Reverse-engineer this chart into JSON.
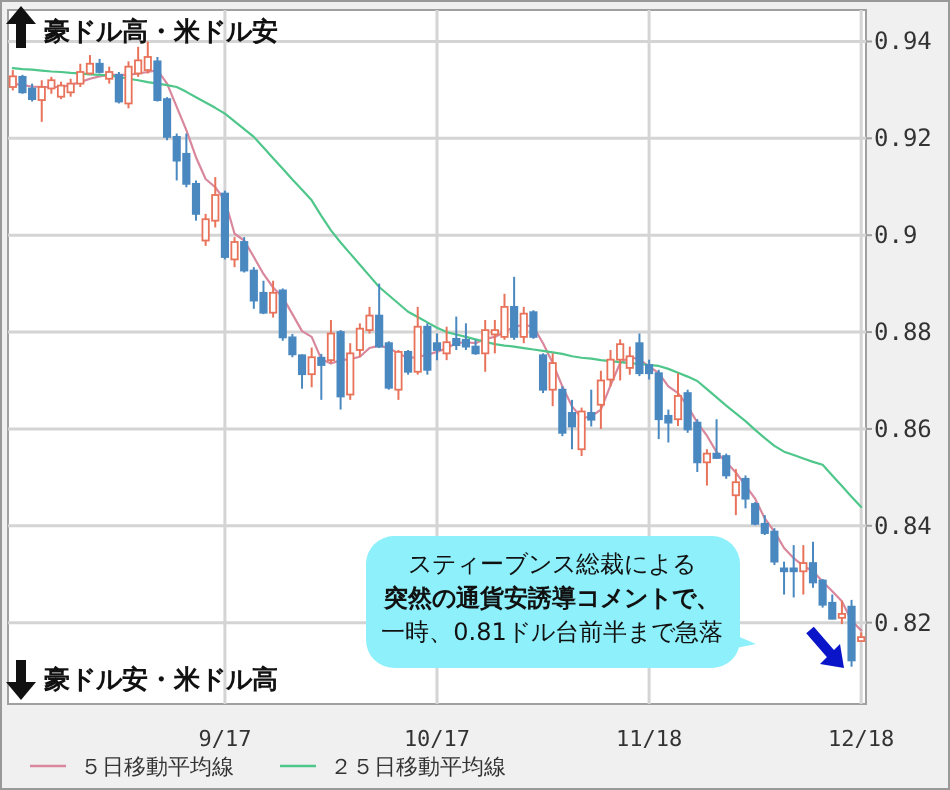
{
  "chart_data": {
    "type": "candlestick",
    "categories": [
      null,
      null,
      null,
      null,
      null,
      null,
      null,
      null,
      null,
      null,
      null,
      null,
      null,
      null,
      null,
      null,
      null,
      null,
      null,
      null,
      null,
      null,
      "9/17",
      null,
      null,
      null,
      null,
      null,
      null,
      null,
      null,
      null,
      null,
      null,
      null,
      null,
      null,
      null,
      null,
      null,
      null,
      null,
      null,
      null,
      "10/17",
      null,
      null,
      null,
      null,
      null,
      null,
      null,
      null,
      null,
      null,
      null,
      null,
      null,
      null,
      null,
      null,
      null,
      null,
      null,
      null,
      null,
      "11/18",
      null,
      null,
      null,
      null,
      null,
      null,
      null,
      null,
      null,
      null,
      null,
      null,
      null,
      null,
      null,
      null,
      null,
      null,
      null,
      null,
      null,
      "12/18"
    ],
    "ohlc": [
      [
        0.9306,
        0.9341,
        0.9299,
        0.9328
      ],
      [
        0.9327,
        0.9331,
        0.9292,
        0.9295
      ],
      [
        0.9303,
        0.9313,
        0.9276,
        0.9281
      ],
      [
        0.9279,
        0.932,
        0.9234,
        0.9306
      ],
      [
        0.9303,
        0.9327,
        0.9292,
        0.932
      ],
      [
        0.9286,
        0.9317,
        0.9281,
        0.9309
      ],
      [
        0.9295,
        0.9323,
        0.9286,
        0.9313
      ],
      [
        0.9313,
        0.9354,
        0.9306,
        0.9337
      ],
      [
        0.9334,
        0.9372,
        0.9331,
        0.9354
      ],
      [
        0.9354,
        0.9364,
        0.9334,
        0.9337
      ],
      [
        0.9323,
        0.9348,
        0.9313,
        0.9337
      ],
      [
        0.9331,
        0.9337,
        0.9272,
        0.9276
      ],
      [
        0.9272,
        0.9359,
        0.9262,
        0.9348
      ],
      [
        0.9334,
        0.9389,
        0.9327,
        0.9361
      ],
      [
        0.9341,
        0.94,
        0.9334,
        0.9368
      ],
      [
        0.9359,
        0.9368,
        0.9276,
        0.9279
      ],
      [
        0.9281,
        0.9285,
        0.9196,
        0.9203
      ],
      [
        0.9203,
        0.921,
        0.9113,
        0.9154
      ],
      [
        0.9168,
        0.921,
        0.9099,
        0.9106
      ],
      [
        0.9106,
        0.9113,
        0.903,
        0.9044
      ],
      [
        0.8989,
        0.9044,
        0.8978,
        0.9033
      ],
      [
        0.903,
        0.912,
        0.9016,
        0.9083
      ],
      [
        0.9086,
        0.9092,
        0.895,
        0.8955
      ],
      [
        0.895,
        0.8996,
        0.8934,
        0.8986
      ],
      [
        0.8986,
        0.8996,
        0.8923,
        0.8927
      ],
      [
        0.8927,
        0.8934,
        0.8848,
        0.8865
      ],
      [
        0.8881,
        0.8906,
        0.8837,
        0.884
      ],
      [
        0.884,
        0.8906,
        0.883,
        0.8881
      ],
      [
        0.8886,
        0.889,
        0.8782,
        0.8789
      ],
      [
        0.8789,
        0.8796,
        0.8748,
        0.8754
      ],
      [
        0.8752,
        0.8754,
        0.8683,
        0.8713
      ],
      [
        0.8713,
        0.8768,
        0.8686,
        0.8748
      ],
      [
        0.8747,
        0.8755,
        0.866,
        0.8732
      ],
      [
        0.8742,
        0.8825,
        0.8736,
        0.8797
      ],
      [
        0.88,
        0.8804,
        0.864,
        0.8667
      ],
      [
        0.8671,
        0.8777,
        0.866,
        0.8756
      ],
      [
        0.8763,
        0.8818,
        0.8749,
        0.8807
      ],
      [
        0.8804,
        0.8852,
        0.8797,
        0.8834
      ],
      [
        0.8834,
        0.89,
        0.8767,
        0.877
      ],
      [
        0.8777,
        0.8781,
        0.8681,
        0.8685
      ],
      [
        0.8681,
        0.8763,
        0.866,
        0.8759
      ],
      [
        0.8759,
        0.8763,
        0.8712,
        0.8718
      ],
      [
        0.8718,
        0.8852,
        0.8712,
        0.8811
      ],
      [
        0.8811,
        0.8818,
        0.8712,
        0.8722
      ],
      [
        0.8777,
        0.8797,
        0.8742,
        0.8763
      ],
      [
        0.8756,
        0.8811,
        0.8742,
        0.8779
      ],
      [
        0.8786,
        0.8832,
        0.8763,
        0.8773
      ],
      [
        0.8784,
        0.8818,
        0.8763,
        0.877
      ],
      [
        0.877,
        0.8784,
        0.8753,
        0.8756
      ],
      [
        0.8756,
        0.8825,
        0.8718,
        0.8804
      ],
      [
        0.8795,
        0.8825,
        0.8756,
        0.8804
      ],
      [
        0.879,
        0.8879,
        0.8784,
        0.8852
      ],
      [
        0.8852,
        0.8914,
        0.8784,
        0.879
      ],
      [
        0.879,
        0.8852,
        0.8777,
        0.8838
      ],
      [
        0.8841,
        0.8845,
        0.8786,
        0.879
      ],
      [
        0.8752,
        0.8756,
        0.8674,
        0.8681
      ],
      [
        0.8681,
        0.8756,
        0.8647,
        0.8736
      ],
      [
        0.8681,
        0.8688,
        0.8585,
        0.8592
      ],
      [
        0.8633,
        0.866,
        0.8558,
        0.8605
      ],
      [
        0.8558,
        0.8644,
        0.8544,
        0.8636
      ],
      [
        0.8633,
        0.8681,
        0.8605,
        0.8619
      ],
      [
        0.865,
        0.872,
        0.86,
        0.87
      ],
      [
        0.8702,
        0.8763,
        0.8688,
        0.8743
      ],
      [
        0.8743,
        0.8785,
        0.87,
        0.8775
      ],
      [
        0.8726,
        0.877,
        0.8712,
        0.875
      ],
      [
        0.8777,
        0.8797,
        0.8709,
        0.8715
      ],
      [
        0.8732,
        0.8743,
        0.8702,
        0.8715
      ],
      [
        0.8715,
        0.8722,
        0.8579,
        0.862
      ],
      [
        0.8627,
        0.864,
        0.8572,
        0.8613
      ],
      [
        0.862,
        0.8715,
        0.8606,
        0.8668
      ],
      [
        0.8674,
        0.8681,
        0.8592,
        0.8599
      ],
      [
        0.8613,
        0.862,
        0.8511,
        0.8531
      ],
      [
        0.8531,
        0.8558,
        0.8483,
        0.8549
      ],
      [
        0.8549,
        0.862,
        0.8538,
        0.854
      ],
      [
        0.8544,
        0.8549,
        0.8497,
        0.8504
      ],
      [
        0.8463,
        0.8517,
        0.8422,
        0.849
      ],
      [
        0.8497,
        0.8504,
        0.8436,
        0.8456
      ],
      [
        0.8445,
        0.8449,
        0.8401,
        0.8404
      ],
      [
        0.8404,
        0.8422,
        0.8381,
        0.8385
      ],
      [
        0.8388,
        0.8395,
        0.8319,
        0.8326
      ],
      [
        0.8312,
        0.8326,
        0.8258,
        0.8306
      ],
      [
        0.8312,
        0.836,
        0.8252,
        0.8306
      ],
      [
        0.8306,
        0.836,
        0.8258,
        0.8323
      ],
      [
        0.8323,
        0.8367,
        0.8272,
        0.8283
      ],
      [
        0.8287,
        0.829,
        0.8231,
        0.8237
      ],
      [
        0.8241,
        0.8258,
        0.8207,
        0.8208
      ],
      [
        0.821,
        0.8245,
        0.8197,
        0.8218
      ],
      [
        0.8233,
        0.8247,
        0.8109,
        0.8122
      ],
      [
        0.8162,
        0.818,
        0.816,
        0.817
      ]
    ],
    "colors": [
      "#e8735a",
      "#4a88c0",
      "#4a88c0",
      "#e8735a",
      "#e8735a",
      "#e8735a",
      "#e8735a",
      "#e8735a",
      "#e8735a",
      "#4a88c0",
      "#e8735a",
      "#4a88c0",
      "#e8735a",
      "#e8735a",
      "#e8735a",
      "#4a88c0",
      "#4a88c0",
      "#4a88c0",
      "#4a88c0",
      "#4a88c0",
      "#e8735a",
      "#e8735a",
      "#4a88c0",
      "#e8735a",
      "#4a88c0",
      "#4a88c0",
      "#4a88c0",
      "#e8735a",
      "#4a88c0",
      "#4a88c0",
      "#4a88c0",
      "#e8735a",
      "#4a88c0",
      "#e8735a",
      "#4a88c0",
      "#e8735a",
      "#e8735a",
      "#e8735a",
      "#4a88c0",
      "#4a88c0",
      "#e8735a",
      "#4a88c0",
      "#e8735a",
      "#4a88c0",
      "#4a88c0",
      "#e8735a",
      "#4a88c0",
      "#4a88c0",
      "#4a88c0",
      "#e8735a",
      "#e8735a",
      "#e8735a",
      "#4a88c0",
      "#e8735a",
      "#4a88c0",
      "#4a88c0",
      "#e8735a",
      "#4a88c0",
      "#4a88c0",
      "#e8735a",
      "#4a88c0",
      "#e8735a",
      "#e8735a",
      "#e8735a",
      "#e8735a",
      "#4a88c0",
      "#4a88c0",
      "#4a88c0",
      "#4a88c0",
      "#e8735a",
      "#4a88c0",
      "#4a88c0",
      "#e8735a",
      "#4a88c0",
      "#4a88c0",
      "#e8735a",
      "#4a88c0",
      "#4a88c0",
      "#4a88c0",
      "#4a88c0",
      "#4a88c0",
      "#4a88c0",
      "#e8735a",
      "#4a88c0",
      "#4a88c0",
      "#4a88c0",
      "#e8735a",
      "#4a88c0",
      "#e8735a"
    ],
    "series": [
      {
        "name": "５日移動平均線",
        "type": "line",
        "color": "#d9879c",
        "values": [
          0.9313,
          0.931,
          0.9307,
          0.9306,
          0.9306,
          0.9306,
          0.931,
          0.9316,
          0.9323,
          0.9328,
          0.9331,
          0.9331,
          0.9331,
          0.9334,
          0.9337,
          0.9341,
          0.9313,
          0.9265,
          0.9217,
          0.9161,
          0.9116,
          0.9099,
          0.9072,
          0.9003,
          0.8989,
          0.8955,
          0.892,
          0.8892,
          0.8872,
          0.8837,
          0.8802,
          0.879,
          0.8744,
          0.8735,
          0.8742,
          0.8744,
          0.8749,
          0.8767,
          0.8772,
          0.8767,
          0.8756,
          0.8746,
          0.8749,
          0.8753,
          0.8759,
          0.8767,
          0.8777,
          0.8779,
          0.8777,
          0.8786,
          0.879,
          0.88,
          0.8811,
          0.8815,
          0.8811,
          0.8777,
          0.8736,
          0.8688,
          0.8647,
          0.8622,
          0.8626,
          0.864,
          0.869,
          0.8736,
          0.8749,
          0.8743,
          0.8729,
          0.8715,
          0.8688,
          0.8674,
          0.8647,
          0.8613,
          0.8586,
          0.8552,
          0.8531,
          0.851,
          0.8483,
          0.8456,
          0.8415,
          0.8388,
          0.8354,
          0.8333,
          0.8317,
          0.8306,
          0.8285,
          0.8265,
          0.8244,
          0.8204,
          0.8184
        ]
      },
      {
        "name": "２５日移動平均線",
        "type": "line",
        "color": "#4fc68a",
        "values": [
          0.9345,
          0.9343,
          0.9342,
          0.934,
          0.9338,
          0.9337,
          0.9335,
          0.9334,
          0.9332,
          0.9331,
          0.933,
          0.9327,
          0.9323,
          0.932,
          0.9316,
          0.9313,
          0.931,
          0.9306,
          0.9296,
          0.9285,
          0.9274,
          0.9263,
          0.9251,
          0.9235,
          0.9219,
          0.9203,
          0.9181,
          0.9159,
          0.9137,
          0.9115,
          0.9094,
          0.9072,
          0.904,
          0.901,
          0.8985,
          0.8962,
          0.8939,
          0.8916,
          0.8893,
          0.8876,
          0.8859,
          0.8842,
          0.8831,
          0.882,
          0.8809,
          0.88,
          0.8795,
          0.879,
          0.8785,
          0.878,
          0.8775,
          0.8772,
          0.877,
          0.8767,
          0.8764,
          0.8761,
          0.8758,
          0.8755,
          0.875,
          0.8747,
          0.8745,
          0.8742,
          0.874,
          0.8738,
          0.8736,
          0.8734,
          0.8732,
          0.873,
          0.8724,
          0.8716,
          0.8708,
          0.8699,
          0.8682,
          0.8665,
          0.8648,
          0.8632,
          0.8616,
          0.8598,
          0.8581,
          0.8565,
          0.8553,
          0.8546,
          0.8539,
          0.8532,
          0.8526,
          0.8504,
          0.8482,
          0.846,
          0.8439
        ]
      }
    ],
    "ylim": [
      0.8032,
      0.9465
    ],
    "yticks": [
      0.82,
      0.84,
      0.86,
      0.88,
      0.9,
      0.92,
      0.94
    ],
    "grid": true,
    "legend": "bottom",
    "annotations": [
      "豪ドル高・米ドル安",
      "豪ドル安・米ドル高",
      "スティーブンス総裁による",
      "突然の通貨安誘導コメントで、",
      "一時、0.81ドル台前半まで急落"
    ]
  }
}
